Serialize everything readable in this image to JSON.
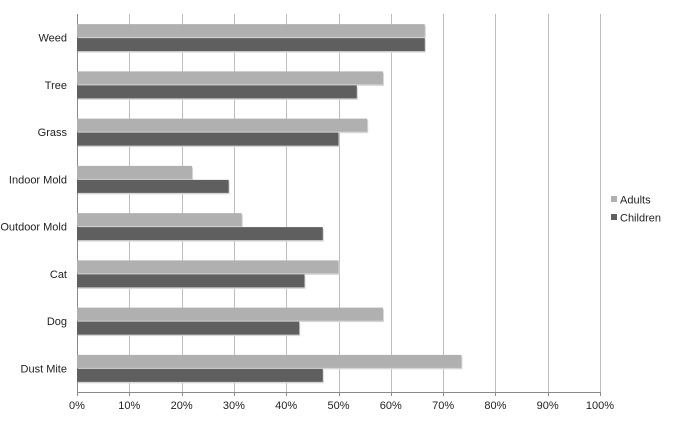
{
  "chart_data": {
    "type": "bar",
    "orientation": "horizontal",
    "categories": [
      "Weed",
      "Tree",
      "Grass",
      "Indoor Mold",
      "Outdoor Mold",
      "Cat",
      "Dog",
      "Dust Mite"
    ],
    "series": [
      {
        "name": "Adults",
        "values": [
          66.5,
          58.5,
          55.5,
          22,
          31.5,
          50,
          58.5,
          73.5
        ],
        "color": "#b0b0b0"
      },
      {
        "name": "Children",
        "values": [
          66.5,
          53.5,
          50,
          29,
          47,
          43.5,
          42.5,
          47
        ],
        "color": "#5f5f5f"
      }
    ],
    "xaxis": {
      "ticks": [
        0,
        10,
        20,
        30,
        40,
        50,
        60,
        70,
        80,
        90,
        100
      ],
      "tick_labels": [
        "0%",
        "10%",
        "20%",
        "30%",
        "40%",
        "50%",
        "60%",
        "70%",
        "80%",
        "90%",
        "100%"
      ],
      "xlim": [
        0,
        100
      ]
    },
    "grid": "vertical",
    "legend": "right",
    "title": "",
    "xlabel": "",
    "ylabel": ""
  }
}
